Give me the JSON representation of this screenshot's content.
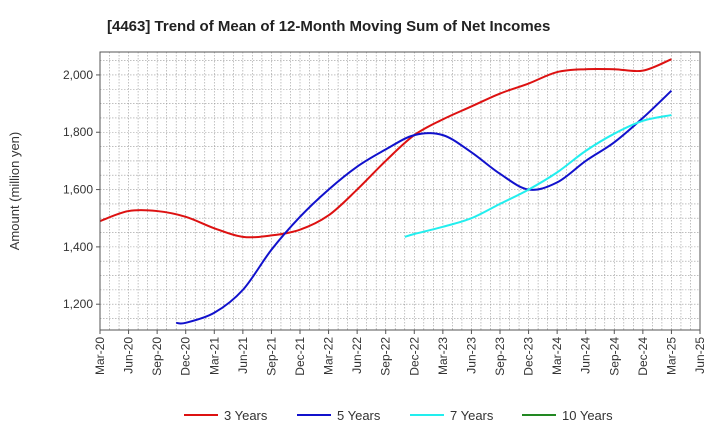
{
  "chart_data": {
    "type": "line",
    "title": "[4463]  Trend of Mean of 12-Month Moving Sum of Net Incomes",
    "ylabel": "Amount (million yen)",
    "xlabel": "",
    "x_ticks": [
      "Mar-20",
      "Jun-20",
      "Sep-20",
      "Dec-20",
      "Mar-21",
      "Jun-21",
      "Sep-21",
      "Dec-21",
      "Mar-22",
      "Jun-22",
      "Sep-22",
      "Dec-22",
      "Mar-23",
      "Jun-23",
      "Sep-23",
      "Dec-23",
      "Mar-24",
      "Jun-24",
      "Sep-24",
      "Dec-24",
      "Mar-25",
      "Jun-25"
    ],
    "y_ticks": [
      "1,200",
      "1,400",
      "1,600",
      "1,800",
      "2,000"
    ],
    "y_tick_values": [
      1200,
      1400,
      1600,
      1800,
      2000
    ],
    "ylim": [
      1110,
      2080
    ],
    "xlim": [
      "Mar-20",
      "Jun-25"
    ],
    "grid": true,
    "legend_position": "bottom",
    "series": [
      {
        "name": "3 Years",
        "color": "#dd1111",
        "x": [
          "Mar-20",
          "Jun-20",
          "Sep-20",
          "Dec-20",
          "Mar-21",
          "Jun-21",
          "Sep-21",
          "Dec-21",
          "Mar-22",
          "Jun-22",
          "Sep-22",
          "Dec-22",
          "Mar-23",
          "Jun-23",
          "Sep-23",
          "Dec-23",
          "Mar-24",
          "Jun-24",
          "Sep-24",
          "Dec-24",
          "Mar-25"
        ],
        "values": [
          1490,
          1525,
          1525,
          1505,
          1465,
          1435,
          1440,
          1460,
          1510,
          1600,
          1700,
          1790,
          1845,
          1890,
          1935,
          1970,
          2010,
          2020,
          2020,
          2015,
          2055
        ]
      },
      {
        "name": "5 Years",
        "color": "#1111cc",
        "x": [
          "Nov-20",
          "Dec-20",
          "Mar-21",
          "Jun-21",
          "Sep-21",
          "Dec-21",
          "Mar-22",
          "Jun-22",
          "Sep-22",
          "Dec-22",
          "Mar-23",
          "Jun-23",
          "Sep-23",
          "Dec-23",
          "Mar-24",
          "Jun-24",
          "Sep-24",
          "Dec-24",
          "Mar-25"
        ],
        "values": [
          1135,
          1135,
          1170,
          1250,
          1390,
          1505,
          1600,
          1680,
          1740,
          1790,
          1790,
          1730,
          1655,
          1600,
          1625,
          1700,
          1765,
          1850,
          1945
        ]
      },
      {
        "name": "7 Years",
        "color": "#22eeee",
        "x": [
          "Nov-22",
          "Dec-22",
          "Mar-23",
          "Jun-23",
          "Sep-23",
          "Dec-23",
          "Mar-24",
          "Jun-24",
          "Sep-24",
          "Dec-24",
          "Mar-25"
        ],
        "values": [
          1435,
          1445,
          1470,
          1500,
          1550,
          1600,
          1660,
          1735,
          1795,
          1840,
          1860
        ]
      },
      {
        "name": "10 Years",
        "color": "#228822",
        "x": [],
        "values": []
      }
    ]
  }
}
